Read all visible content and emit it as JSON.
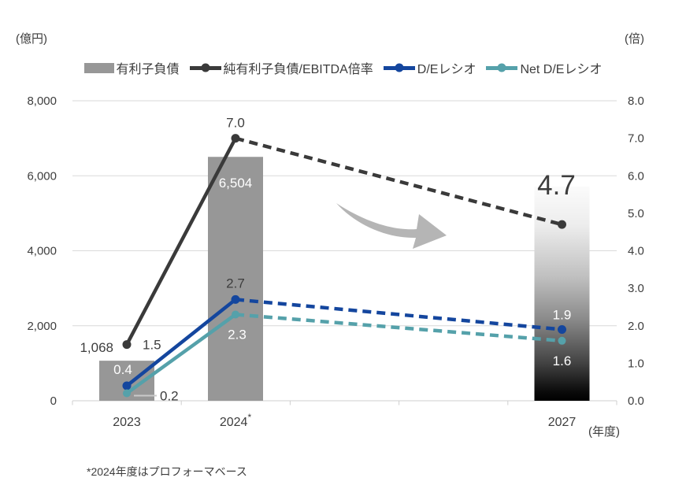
{
  "chart_data": {
    "type": "bar",
    "subtype": "combo-bar-line-dual-axis",
    "title": "",
    "unit_left": "(億円)",
    "unit_right": "(倍)",
    "x_unit": "(年度)",
    "categories": [
      "2023",
      "2024*",
      "2027"
    ],
    "bar_series": {
      "name": "有利子負債",
      "axis": "left",
      "values": [
        1068,
        6504,
        5714
      ],
      "value_labels": [
        "1,068",
        "6,504",
        ""
      ],
      "note": "2027 bar is an unlabeled gradient (white top to black bottom), top at approx 5,700 億円"
    },
    "line_series": [
      {
        "name": "純有利子負債/EBITDA倍率",
        "axis": "right",
        "values": [
          1.5,
          7.0,
          4.7
        ],
        "value_labels": [
          "1.5",
          "7.0",
          "4.7"
        ],
        "color": "#3A3A3A",
        "style": "solid 2023-2024, dashed 2024-2027"
      },
      {
        "name": "D/Eレシオ",
        "axis": "right",
        "values": [
          0.4,
          2.7,
          1.9
        ],
        "value_labels": [
          "0.4",
          "2.7",
          "1.9"
        ],
        "color": "#14469E",
        "style": "solid 2023-2024, dashed 2024-2027"
      },
      {
        "name": "Net D/Eレシオ",
        "axis": "right",
        "values": [
          0.2,
          2.3,
          1.6
        ],
        "value_labels": [
          "0.2",
          "2.3",
          "1.6"
        ],
        "color": "#55A1AA",
        "style": "solid 2023-2024, dashed 2024-2027"
      }
    ],
    "left_axis": {
      "range": [
        0,
        8000
      ],
      "ticks": [
        "8,000",
        "6,000",
        "4,000",
        "2,000",
        "0"
      ]
    },
    "right_axis": {
      "range": [
        0,
        8
      ],
      "ticks": [
        "8.0",
        "7.0",
        "6.0",
        "5.0",
        "4.0",
        "3.0",
        "2.0",
        "1.0",
        "0.0"
      ]
    },
    "grid": "horizontal lines at every 2,000 (left) / 2.0 (right)",
    "legend_position": "top-center",
    "annotations": {
      "big_target_label": "4.7",
      "trend_arrow": "large gray curved arrow pointing down-right between 2024 and 2027"
    },
    "footnote": "*2024年度はプロフォーマベース",
    "colors": {
      "bar": "#979797",
      "bar_2027_gradient_top": "#FBFBFB",
      "bar_2027_gradient_bottom": "#000000",
      "ebitda_line": "#3A3A3A",
      "de_line": "#14469E",
      "net_de_line": "#55A1AA",
      "arrow": "#B5B5B5",
      "grid": "#D9D9D9",
      "axis": "#CFCFCF",
      "label_dark": "#3D3D3D",
      "label_white": "#FFFFFF"
    }
  }
}
